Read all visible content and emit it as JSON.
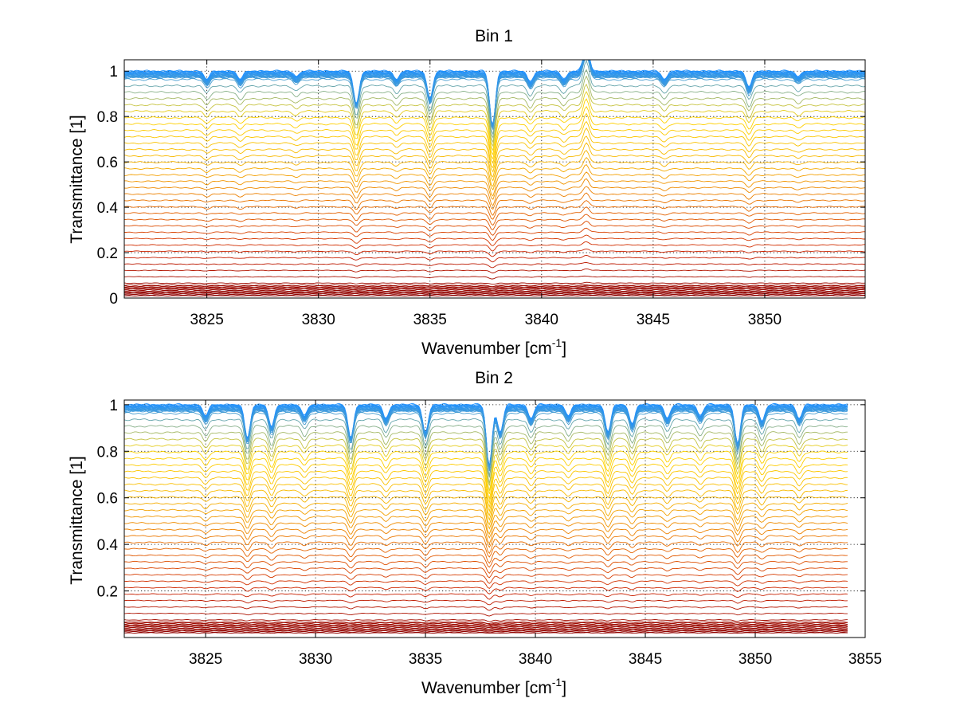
{
  "chart_data": [
    {
      "type": "line",
      "title": "Bin 1",
      "xlabel": "Wavenumber [cm",
      "xlabel_sup": "-1",
      "xlabel_end": "]",
      "ylabel": "Transmittance [1]",
      "xlim": [
        3821.3,
        3854.5
      ],
      "ylim": [
        0,
        1.05
      ],
      "xticks": [
        3825,
        3830,
        3835,
        3840,
        3845,
        3850
      ],
      "yticks": [
        0,
        0.2,
        0.4,
        0.6,
        0.8,
        1
      ],
      "ytick_labels": [
        "0",
        "0.2",
        "0.4",
        "0.6",
        "0.8",
        "1"
      ],
      "grid": true,
      "series_count": 60,
      "x_range": [
        3821.3,
        3854.5
      ],
      "baseline_levels": [
        1.0,
        0.01
      ],
      "colormap": [
        "#8b0000",
        "#cc2200",
        "#e86a00",
        "#f7b500",
        "#ffd400",
        "#1e90ff"
      ],
      "absorption_lines": [
        {
          "x": 3825.0,
          "depth": 0.03
        },
        {
          "x": 3826.5,
          "depth": 0.03
        },
        {
          "x": 3829.0,
          "depth": 0.02
        },
        {
          "x": 3831.7,
          "depth": 0.12
        },
        {
          "x": 3833.5,
          "depth": 0.03
        },
        {
          "x": 3835.0,
          "depth": 0.1
        },
        {
          "x": 3837.8,
          "depth": 0.2
        },
        {
          "x": 3839.5,
          "depth": 0.04
        },
        {
          "x": 3841.0,
          "depth": 0.03
        },
        {
          "x": 3842.0,
          "depth": -0.1
        },
        {
          "x": 3845.5,
          "depth": 0.03
        },
        {
          "x": 3849.3,
          "depth": 0.06
        },
        {
          "x": 3851.5,
          "depth": 0.02
        }
      ]
    },
    {
      "type": "line",
      "title": "Bin 2",
      "xlabel": "Wavenumber [cm",
      "xlabel_sup": "-1",
      "xlabel_end": "]",
      "ylabel": "Transmittance [1]",
      "xlim": [
        3821.3,
        3855
      ],
      "ylim": [
        0,
        1.02
      ],
      "xticks": [
        3825,
        3830,
        3835,
        3840,
        3845,
        3850,
        3855
      ],
      "yticks": [
        0.2,
        0.4,
        0.6,
        0.8,
        1
      ],
      "ytick_labels": [
        "0.2",
        "0.4",
        "0.6",
        "0.8",
        "1"
      ],
      "grid": true,
      "series_count": 60,
      "x_range": [
        3821.3,
        3854.2
      ],
      "baseline_levels": [
        1.0,
        0.02
      ],
      "colormap": [
        "#8b0000",
        "#cc2200",
        "#e86a00",
        "#f7b500",
        "#ffd400",
        "#1e90ff"
      ],
      "absorption_lines": [
        {
          "x": 3825.0,
          "depth": 0.04
        },
        {
          "x": 3826.9,
          "depth": 0.12
        },
        {
          "x": 3828.0,
          "depth": 0.08
        },
        {
          "x": 3829.5,
          "depth": 0.04
        },
        {
          "x": 3831.6,
          "depth": 0.12
        },
        {
          "x": 3833.2,
          "depth": 0.05
        },
        {
          "x": 3835.0,
          "depth": 0.1
        },
        {
          "x": 3837.9,
          "depth": 0.22
        },
        {
          "x": 3838.4,
          "depth": 0.1
        },
        {
          "x": 3839.8,
          "depth": 0.05
        },
        {
          "x": 3841.5,
          "depth": 0.04
        },
        {
          "x": 3843.3,
          "depth": 0.1
        },
        {
          "x": 3844.4,
          "depth": 0.07
        },
        {
          "x": 3846.0,
          "depth": 0.05
        },
        {
          "x": 3847.5,
          "depth": 0.04
        },
        {
          "x": 3849.2,
          "depth": 0.14
        },
        {
          "x": 3850.3,
          "depth": 0.06
        },
        {
          "x": 3852.0,
          "depth": 0.05
        }
      ]
    }
  ]
}
